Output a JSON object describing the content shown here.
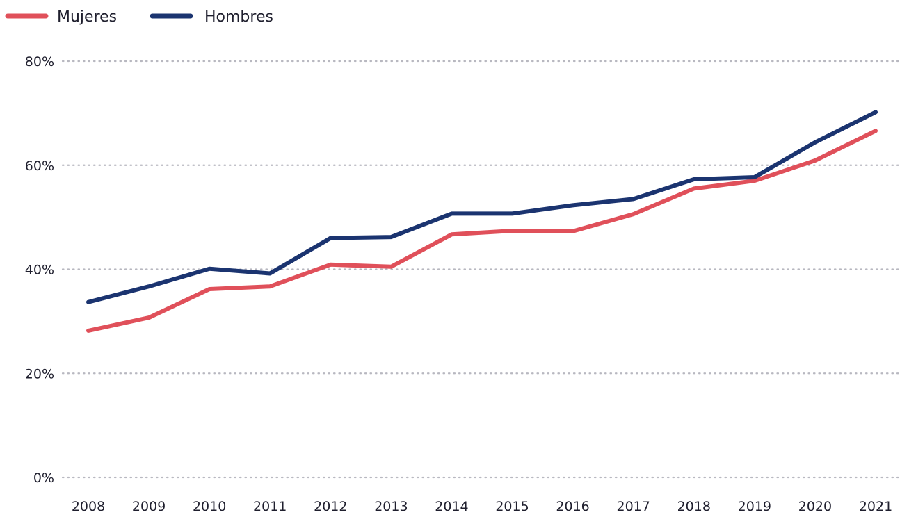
{
  "chart_data": {
    "type": "line",
    "x": [
      "2008",
      "2009",
      "2010",
      "2011",
      "2012",
      "2013",
      "2014",
      "2015",
      "2016",
      "2017",
      "2018",
      "2019",
      "2020",
      "2021"
    ],
    "series": [
      {
        "name": "Mujeres",
        "color": "#e0505a",
        "values": [
          28.2,
          30.7,
          36.2,
          36.7,
          40.9,
          40.5,
          46.7,
          47.4,
          47.3,
          50.6,
          55.5,
          57.0,
          60.9,
          66.6
        ]
      },
      {
        "name": "Hombres",
        "color": "#1b3470",
        "values": [
          33.7,
          36.7,
          40.1,
          39.2,
          46.0,
          46.2,
          50.7,
          50.7,
          52.3,
          53.5,
          57.3,
          57.7,
          64.4,
          70.2
        ]
      }
    ],
    "yticks": [
      {
        "value": 0,
        "label": "0%"
      },
      {
        "value": 20,
        "label": "20%"
      },
      {
        "value": 40,
        "label": "40%"
      },
      {
        "value": 60,
        "label": "60%"
      },
      {
        "value": 80,
        "label": "80%"
      }
    ],
    "ylim": [
      0,
      80
    ],
    "grid": true,
    "legend_position": "top-left",
    "title": "",
    "xlabel": "",
    "ylabel": ""
  }
}
